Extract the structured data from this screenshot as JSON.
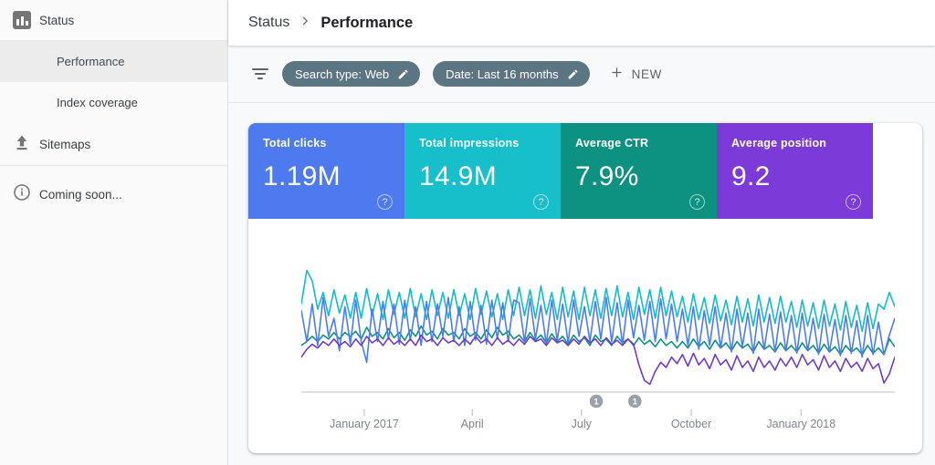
{
  "icons": {
    "status": "bar-chart-icon",
    "sitemaps": "upload-icon",
    "coming_soon": "info-icon",
    "breadcrumb_separator": "chevron-right-icon",
    "filter": "filter-funnel-icon",
    "chip_edit": "pencil-icon",
    "new": "plus-icon",
    "card_help": "help-circle-icon"
  },
  "sidebar": {
    "items": [
      {
        "label": "Status",
        "icon": "bar-chart-icon",
        "selected": false
      },
      {
        "label": "Performance",
        "selected": true
      },
      {
        "label": "Index coverage",
        "selected": false
      },
      {
        "label": "Sitemaps",
        "icon": "upload-icon",
        "selected": false
      },
      {
        "label": "Coming soon...",
        "icon": "info-icon",
        "selected": false
      }
    ]
  },
  "breadcrumb": {
    "parent": "Status",
    "current": "Performance"
  },
  "filters": {
    "chips": [
      {
        "label": "Search type: Web"
      },
      {
        "label": "Date: Last 16 months"
      }
    ],
    "new_label": "NEW"
  },
  "cards": [
    {
      "title": "Total clicks",
      "value": "1.19M",
      "color": "#4e7af0",
      "help": "?"
    },
    {
      "title": "Total impressions",
      "value": "14.9M",
      "color": "#16bfc9",
      "help": "?"
    },
    {
      "title": "Average CTR",
      "value": "7.9%",
      "color": "#0d9180",
      "help": "?"
    },
    {
      "title": "Average position",
      "value": "9.2",
      "color": "#7c3bd8",
      "help": "?"
    }
  ],
  "chart_data": {
    "type": "line",
    "title": "",
    "x_range_note": "daily values, last 16 months",
    "grid": false,
    "legend": "none (series colors match metric cards)",
    "x_ticks": [
      {
        "label": "January 2017",
        "pos": 0.106
      },
      {
        "label": "April",
        "pos": 0.288
      },
      {
        "label": "July",
        "pos": 0.472
      },
      {
        "label": "October",
        "pos": 0.657
      },
      {
        "label": "January 2018",
        "pos": 0.842
      }
    ],
    "annotations": [
      {
        "label": "1",
        "pos": 0.497
      },
      {
        "label": "1",
        "pos": 0.562
      }
    ],
    "y_scale": "relative visual height, 0 = axis, 100 = plot top (no y axis shown in UI)",
    "series": [
      {
        "name": "Total impressions",
        "color": "#12bdc9",
        "y": [
          68,
          94,
          86,
          64,
          77,
          59,
          79,
          61,
          75,
          57,
          77,
          57,
          80,
          59,
          76,
          56,
          79,
          60,
          77,
          57,
          80,
          58,
          76,
          56,
          79,
          59,
          77,
          57,
          79,
          59,
          76,
          56,
          80,
          60,
          78,
          58,
          76,
          56,
          79,
          59,
          81,
          59,
          79,
          57,
          82,
          60,
          77,
          56,
          81,
          58,
          78,
          56,
          81,
          59,
          79,
          57,
          80,
          59,
          82,
          58,
          77,
          56,
          81,
          60,
          79,
          57,
          81,
          59,
          78,
          58,
          74,
          54,
          76,
          56,
          73,
          53,
          75,
          55,
          71,
          52,
          74,
          54,
          72,
          51,
          75,
          54,
          73,
          53,
          74,
          54,
          70,
          50,
          71,
          51,
          69,
          49,
          71,
          51,
          68,
          48,
          70,
          50,
          67,
          47,
          69,
          49,
          68,
          64,
          77,
          66
        ]
      },
      {
        "name": "Average CTR",
        "color": "#0d9180",
        "y": [
          36,
          39,
          43,
          39,
          44,
          41,
          46,
          41,
          46,
          43,
          47,
          41,
          50,
          43,
          46,
          41,
          49,
          42,
          46,
          40,
          48,
          43,
          51,
          44,
          47,
          41,
          49,
          44,
          46,
          41,
          49,
          43,
          46,
          41,
          48,
          42,
          50,
          44,
          47,
          41,
          44,
          39,
          46,
          40,
          44,
          38,
          45,
          39,
          43,
          37,
          44,
          39,
          42,
          36,
          44,
          39,
          41,
          36,
          43,
          38,
          41,
          36,
          42,
          37,
          40,
          35,
          41,
          36,
          39,
          34,
          39,
          34,
          41,
          35,
          39,
          33,
          40,
          34,
          38,
          32,
          39,
          34,
          37,
          31,
          39,
          33,
          36,
          31,
          38,
          32,
          36,
          31,
          38,
          32,
          36,
          30,
          37,
          31,
          35,
          29,
          36,
          31,
          34,
          29,
          36,
          30,
          34,
          29,
          41,
          35
        ]
      },
      {
        "name": "Total clicks",
        "color": "#4a7df5",
        "y": [
          63,
          39,
          68,
          36,
          73,
          43,
          57,
          32,
          66,
          37,
          71,
          39,
          23,
          64,
          39,
          70,
          41,
          68,
          37,
          71,
          40,
          66,
          36,
          70,
          39,
          68,
          43,
          73,
          39,
          66,
          36,
          70,
          40,
          67,
          37,
          71,
          41,
          69,
          39,
          71,
          69,
          39,
          72,
          41,
          67,
          37,
          71,
          40,
          68,
          38,
          71,
          43,
          66,
          39,
          70,
          41,
          73,
          39,
          69,
          37,
          71,
          42,
          67,
          40,
          70,
          39,
          72,
          41,
          68,
          39,
          64,
          36,
          66,
          33,
          63,
          36,
          66,
          34,
          61,
          31,
          64,
          35,
          61,
          30,
          64,
          33,
          60,
          31,
          62,
          32,
          59,
          30,
          61,
          32,
          57,
          29,
          60,
          31,
          56,
          28,
          59,
          30,
          55,
          27,
          59,
          29,
          54,
          29,
          44,
          57
        ]
      },
      {
        "name": "Average position",
        "color": "#6f3bd1",
        "y": [
          27,
          33,
          37,
          34,
          39,
          36,
          41,
          36,
          39,
          35,
          41,
          36,
          43,
          38,
          41,
          36,
          42,
          37,
          40,
          36,
          41,
          36,
          44,
          39,
          41,
          36,
          42,
          38,
          40,
          36,
          41,
          37,
          43,
          38,
          41,
          36,
          42,
          37,
          40,
          36,
          41,
          37,
          43,
          39,
          41,
          36,
          42,
          38,
          40,
          36,
          41,
          37,
          43,
          38,
          41,
          36,
          42,
          37,
          40,
          36,
          41,
          37,
          21,
          9,
          6,
          16,
          23,
          19,
          27,
          22,
          29,
          20,
          30,
          21,
          26,
          18,
          29,
          21,
          25,
          17,
          28,
          19,
          24,
          16,
          27,
          19,
          24,
          17,
          26,
          20,
          27,
          19,
          29,
          21,
          25,
          17,
          28,
          19,
          24,
          16,
          26,
          19,
          23,
          16,
          26,
          18,
          22,
          7,
          14,
          27
        ]
      }
    ]
  }
}
